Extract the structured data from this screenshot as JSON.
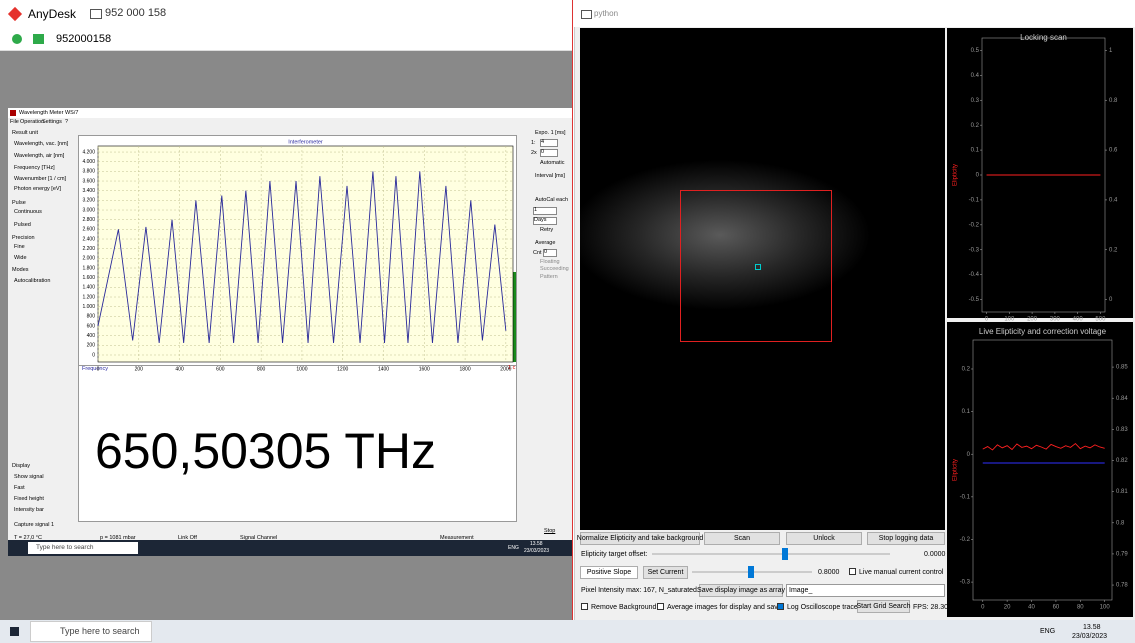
{
  "anydesk": {
    "title": "AnyDesk",
    "address": "952 000 158",
    "id": "952000158"
  },
  "wavemeter": {
    "title": "Wavelength Meter WS/7",
    "menu": [
      "File",
      "Operation",
      "Settings",
      "?"
    ],
    "result_unit": {
      "label": "Result unit",
      "options": [
        "Wavelength, vac. [nm]",
        "Wavelength, air [nm]",
        "Frequency [THz]",
        "Wavenumber [1 / cm]",
        "Photon energy [eV]"
      ]
    },
    "pulse": {
      "label": "Pulse",
      "options": [
        "Continuous",
        "Pulsed"
      ]
    },
    "precision": {
      "label": "Precision",
      "options": [
        "Fine",
        "Wide"
      ]
    },
    "modes": {
      "label": "Modes",
      "options": [
        "Autocalibration"
      ]
    },
    "display": {
      "label": "Display",
      "options": [
        "Show signal",
        "Fast",
        "Fixed height",
        "Intensity bar"
      ]
    },
    "capture": "Capture signal 1",
    "expo": {
      "label": "Expo. 1 [ms]",
      "row1": "1:",
      "val1": "4",
      "row2": "2x",
      "val2": "0",
      "auto": "Automatic"
    },
    "interval": "Interval [ms]",
    "autocal": {
      "label": "AutoCal each",
      "value": "1",
      "unit": "Days",
      "retry": "Retry"
    },
    "average": {
      "label": "Average",
      "cnt": "Cnt",
      "value": "0",
      "options": [
        "Floating",
        "Succeeding",
        "Pattern"
      ]
    },
    "frequency_label": "Frequency",
    "channel": "1 c",
    "reading": "650,50305 THz",
    "stop": "Stop",
    "status": [
      "T = 27,0 °C",
      "p = 1081 mbar",
      "Link Off",
      "Signal Channel",
      "Measurement"
    ]
  },
  "inner_taskbar": {
    "search": "Type here to search",
    "lang": "ENG",
    "time": "13.58",
    "date": "23/03/2023"
  },
  "python": {
    "title": "python",
    "buttons": [
      "Normalize Elipticity and take background",
      "Scan",
      "Unlock",
      "Stop logging data"
    ],
    "offset_label": "Elipticity target offset:",
    "offset_value": "0.0000",
    "slope": "Positive Slope",
    "set_current": "Set Current",
    "current_value": "0.8000",
    "manual": "Live manual current control",
    "pixel_info": "Pixel Intensity max: 167, N_saturated: 0",
    "save_button": "Save display image as array",
    "filename": "Image_",
    "remove_bg": "Remove Background",
    "average": "Average images for display and save",
    "log": "Log Oscilloscope trace",
    "grid_search": "Start Grid Search",
    "fps": "FPS: 28.30"
  },
  "taskbar": {
    "search": "Type here to search",
    "lang": "ENG",
    "time": "13.58",
    "date": "23/03/2023"
  },
  "chart_data": [
    {
      "type": "line",
      "title": "Interferometer",
      "x": [
        0,
        100,
        170,
        235,
        300,
        363,
        420,
        480,
        545,
        607,
        665,
        725,
        785,
        843,
        905,
        971,
        1030,
        1088,
        1155,
        1221,
        1285,
        1348,
        1405,
        1461,
        1520,
        1578,
        1640,
        1706,
        1765,
        1828,
        1885,
        1946,
        2000
      ],
      "series": [
        {
          "color": "#2a2a9a",
          "values": [
            600,
            2600,
            300,
            2650,
            250,
            2800,
            250,
            3200,
            250,
            3300,
            250,
            3400,
            250,
            3600,
            250,
            3600,
            250,
            3700,
            250,
            3500,
            250,
            3800,
            250,
            3700,
            250,
            3800,
            250,
            3500,
            250,
            3200,
            300,
            2700,
            500
          ]
        }
      ],
      "xlim": [
        0,
        2035
      ],
      "ylim": [
        -145,
        4325
      ],
      "xticks": [
        0,
        200,
        400,
        600,
        800,
        1000,
        1200,
        1400,
        1600,
        1800,
        2000
      ],
      "yticks": [
        0,
        200,
        400,
        600,
        800,
        {
          "value": 1000,
          "label": "1.000"
        },
        {
          "value": 1200,
          "label": "1.200"
        },
        {
          "value": 1400,
          "label": "1.400"
        },
        {
          "value": 1600,
          "label": "1.600"
        },
        {
          "value": 1800,
          "label": "1.800"
        },
        {
          "value": 2000,
          "label": "2.000"
        },
        {
          "value": 2200,
          "label": "2.200"
        },
        {
          "value": 2400,
          "label": "2.400"
        },
        {
          "value": 2600,
          "label": "2.600"
        },
        {
          "value": 2800,
          "label": "2.800"
        },
        {
          "value": 3000,
          "label": "3.000"
        },
        {
          "value": 3200,
          "label": "3.200"
        },
        {
          "value": 3400,
          "label": "3.400"
        },
        {
          "value": 3600,
          "label": "3.600"
        },
        {
          "value": 3800,
          "label": "3.800"
        },
        {
          "value": 4000,
          "label": "4.000"
        },
        {
          "value": 4200,
          "label": "4.200"
        }
      ],
      "grid": true
    },
    {
      "type": "line",
      "title": "Locking scan",
      "ylabel": "Elipticity",
      "x": [
        0,
        500
      ],
      "series": [
        {
          "color": "#ff2020",
          "values": [
            0,
            0
          ]
        }
      ],
      "xlim": [
        -20,
        520
      ],
      "ylim": [
        -0.55,
        0.55
      ],
      "xticks": [
        0,
        100,
        200,
        300,
        400,
        500
      ],
      "yticks": [
        -0.5,
        -0.4,
        -0.3,
        -0.2,
        -0.1,
        0,
        0.1,
        0.2,
        0.3,
        0.4,
        0.5
      ],
      "y2lim": [
        -0.05,
        1.05
      ],
      "y2ticks": [
        0,
        0.2,
        0.4,
        0.6,
        0.8,
        1
      ],
      "grid": false
    },
    {
      "type": "line",
      "title": "Live Elipticity and correction voltage",
      "ylabel": "Elipticity",
      "x": [
        0,
        4,
        8,
        12,
        16,
        20,
        24,
        28,
        32,
        36,
        40,
        44,
        48,
        52,
        56,
        60,
        64,
        68,
        72,
        76,
        80,
        84,
        88,
        92,
        96,
        100
      ],
      "series": [
        {
          "color": "#3030ff",
          "axis": "y2",
          "values": [
            0.8192,
            0.8192,
            0.8192,
            0.8192,
            0.8192,
            0.8192,
            0.8192,
            0.8192,
            0.8192,
            0.8192,
            0.8192,
            0.8192,
            0.8192,
            0.8192,
            0.8192,
            0.8192,
            0.8192,
            0.8192,
            0.8192,
            0.8192,
            0.8192,
            0.8192,
            0.8192,
            0.8192,
            0.8192,
            0.8192
          ]
        },
        {
          "color": "#ff2020",
          "values": [
            0.012,
            0.018,
            0.01,
            0.022,
            0.015,
            0.02,
            0.011,
            0.024,
            0.016,
            0.019,
            0.013,
            0.021,
            0.017,
            0.012,
            0.023,
            0.018,
            0.014,
            0.02,
            0.016,
            0.025,
            0.013,
            0.019,
            0.015,
            0.022,
            0.017,
            0.014
          ]
        }
      ],
      "xlim": [
        -8,
        106
      ],
      "ylim": [
        -0.342,
        0.268
      ],
      "xticks": [
        0,
        20,
        40,
        60,
        80,
        100
      ],
      "yticks": [
        -0.3,
        -0.2,
        -0.1,
        0,
        0.1,
        0.2
      ],
      "y2lim": [
        0.7752,
        0.8587
      ],
      "y2ticks": [
        0.78,
        0.79,
        0.8,
        0.81,
        0.82,
        0.83,
        0.84,
        0.85
      ],
      "grid": false
    }
  ]
}
